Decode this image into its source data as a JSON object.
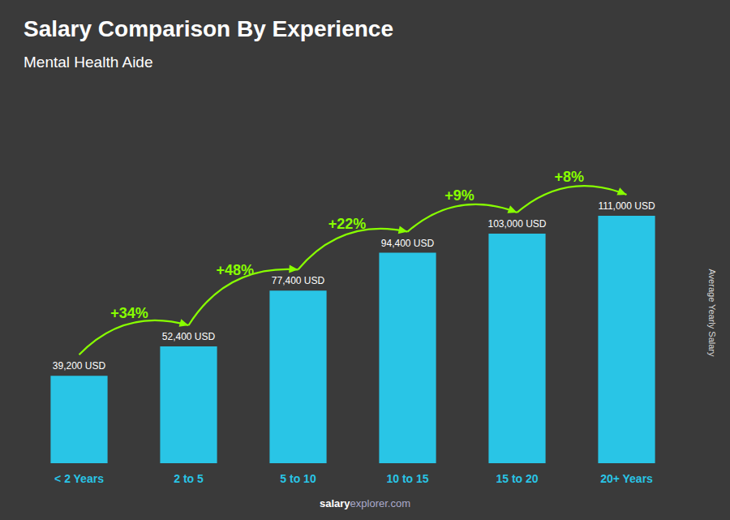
{
  "chart_data": {
    "type": "bar",
    "title": "Salary Comparison By Experience",
    "subtitle": "Mental Health Aide",
    "ylabel": "Average Yearly Salary",
    "footer": [
      "salary",
      "explorer.com"
    ],
    "categories": [
      "< 2 Years",
      "2 to 5",
      "5 to 10",
      "10 to 15",
      "15 to 20",
      "20+ Years"
    ],
    "values": [
      39200,
      52400,
      77400,
      94400,
      103000,
      111000
    ],
    "value_labels": [
      "39,200 USD",
      "52,400 USD",
      "77,400 USD",
      "94,400 USD",
      "103,000 USD",
      "111,000 USD"
    ],
    "data_labels": true,
    "color": "#29c5e6",
    "ylim": [
      0,
      135000
    ],
    "grid": false,
    "tick_labels": "x",
    "annotations": [
      {
        "text": "+34%",
        "from": "< 2 Years",
        "to": "2 to 5",
        "color": "#88ff00"
      },
      {
        "text": "+48%",
        "from": "2 to 5",
        "to": "5 to 10",
        "color": "#88ff00"
      },
      {
        "text": "+22%",
        "from": "5 to 10",
        "to": "10 to 15",
        "color": "#88ff00"
      },
      {
        "text": "+9%",
        "from": "10 to 15",
        "to": "15 to 20",
        "color": "#88ff00"
      },
      {
        "text": "+8%",
        "from": "15 to 20",
        "to": "20+ Years",
        "color": "#88ff00"
      }
    ]
  }
}
